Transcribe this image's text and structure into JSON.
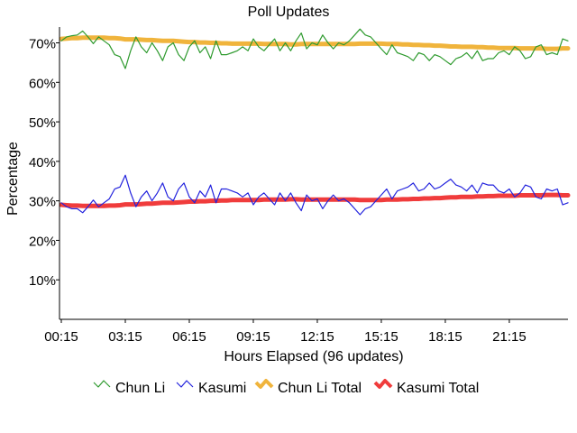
{
  "chart_data": {
    "type": "line",
    "title": "Poll Updates",
    "xlabel": "Hours Elapsed (96 updates)",
    "ylabel": "Percentage",
    "ylim": [
      0,
      74
    ],
    "y_ticks": [
      {
        "value": 10,
        "label": "10%"
      },
      {
        "value": 20,
        "label": "20%"
      },
      {
        "value": 30,
        "label": "30%"
      },
      {
        "value": 40,
        "label": "40%"
      },
      {
        "value": 50,
        "label": "50%"
      },
      {
        "value": 60,
        "label": "60%"
      },
      {
        "value": 70,
        "label": "70%"
      }
    ],
    "x_ticks": [
      {
        "index": 0,
        "label": "00:15"
      },
      {
        "index": 12,
        "label": "03:15"
      },
      {
        "index": 24,
        "label": "06:15"
      },
      {
        "index": 36,
        "label": "09:15"
      },
      {
        "index": 48,
        "label": "12:15"
      },
      {
        "index": 60,
        "label": "15:15"
      },
      {
        "index": 72,
        "label": "18:15"
      },
      {
        "index": 84,
        "label": "21:15"
      }
    ],
    "grid": false,
    "legend_position": "bottom",
    "series": [
      {
        "name": "Chun Li",
        "color": "#2e9a2e",
        "style": "thin",
        "values": [
          70.5,
          71.5,
          71.8,
          72,
          73,
          71.5,
          69.8,
          71.5,
          70.5,
          69.5,
          67,
          66.5,
          63.5,
          68,
          71.5,
          69,
          67.5,
          70,
          68,
          65.5,
          69,
          70,
          67,
          65.5,
          69,
          70.5,
          67.5,
          69,
          66,
          70.5,
          67,
          67,
          67.5,
          68,
          69,
          68,
          71,
          69,
          68,
          69.5,
          71,
          68,
          70,
          68,
          70.5,
          72.5,
          68.5,
          70,
          69.5,
          72,
          70,
          68.5,
          70,
          69.5,
          70.5,
          72,
          73.5,
          72,
          71.5,
          70,
          68.5,
          67,
          69.5,
          67.5,
          67,
          66.5,
          65.5,
          67.5,
          67,
          65.5,
          67,
          66.5,
          65.5,
          64.5,
          66,
          66.5,
          67.5,
          66,
          68,
          65.5,
          66,
          66,
          67.5,
          68,
          67,
          69,
          68,
          66,
          66.5,
          69,
          69.5,
          67,
          67.5,
          67,
          71,
          70.5
        ]
      },
      {
        "name": "Kasumi",
        "color": "#2222dd",
        "style": "thin",
        "values": [
          29.5,
          28.5,
          28,
          28,
          27,
          28.5,
          30.2,
          28.5,
          29.5,
          30.5,
          33,
          33.5,
          36.5,
          32,
          28.5,
          31,
          32.5,
          30,
          32,
          34.5,
          31,
          30,
          33,
          34.5,
          31,
          29.5,
          32.5,
          31,
          34,
          29.5,
          33,
          33,
          32.5,
          32,
          31,
          32,
          29,
          31,
          32,
          30.5,
          29,
          32,
          30,
          32,
          29.5,
          27.5,
          31.5,
          30,
          30.5,
          28,
          30,
          31.5,
          30,
          30.5,
          29.5,
          28,
          26.5,
          28,
          28.5,
          30,
          31.5,
          33,
          30.5,
          32.5,
          33,
          33.5,
          34.5,
          32.5,
          33,
          34.5,
          33,
          33.5,
          34.5,
          35.5,
          34,
          33.5,
          32.5,
          34,
          32,
          34.5,
          34,
          34,
          32.5,
          32,
          33,
          31,
          32,
          34,
          33.5,
          31,
          30.5,
          33,
          32.5,
          33,
          29,
          29.5
        ]
      },
      {
        "name": "Chun Li Total",
        "color": "#f0b43c",
        "style": "thick",
        "values": [
          71,
          71.1,
          71.2,
          71.2,
          71.3,
          71.3,
          71.3,
          71.3,
          71.3,
          71.2,
          71.2,
          71.1,
          70.9,
          70.9,
          70.9,
          70.8,
          70.7,
          70.7,
          70.6,
          70.5,
          70.5,
          70.5,
          70.4,
          70.3,
          70.2,
          70.2,
          70.1,
          70.1,
          70,
          70,
          69.9,
          69.9,
          69.8,
          69.8,
          69.8,
          69.8,
          69.8,
          69.8,
          69.7,
          69.7,
          69.7,
          69.7,
          69.7,
          69.6,
          69.6,
          69.7,
          69.7,
          69.7,
          69.7,
          69.7,
          69.7,
          69.7,
          69.7,
          69.7,
          69.7,
          69.7,
          69.8,
          69.8,
          69.8,
          69.8,
          69.8,
          69.7,
          69.7,
          69.7,
          69.6,
          69.6,
          69.5,
          69.5,
          69.4,
          69.4,
          69.3,
          69.3,
          69.2,
          69.1,
          69.1,
          69,
          69,
          69,
          68.9,
          68.9,
          68.8,
          68.8,
          68.7,
          68.7,
          68.7,
          68.7,
          68.6,
          68.6,
          68.6,
          68.6,
          68.6,
          68.5,
          68.5,
          68.5,
          68.6,
          68.6
        ]
      },
      {
        "name": "Kasumi Total",
        "color": "#f03c3c",
        "style": "thick",
        "values": [
          29,
          28.9,
          28.8,
          28.8,
          28.7,
          28.7,
          28.7,
          28.7,
          28.7,
          28.8,
          28.8,
          28.9,
          29.1,
          29.1,
          29.1,
          29.2,
          29.3,
          29.3,
          29.4,
          29.5,
          29.5,
          29.5,
          29.6,
          29.7,
          29.8,
          29.8,
          29.9,
          29.9,
          30,
          30,
          30.1,
          30.1,
          30.2,
          30.2,
          30.2,
          30.2,
          30.2,
          30.2,
          30.3,
          30.3,
          30.3,
          30.3,
          30.3,
          30.4,
          30.4,
          30.3,
          30.3,
          30.3,
          30.3,
          30.3,
          30.3,
          30.3,
          30.3,
          30.3,
          30.3,
          30.3,
          30.2,
          30.2,
          30.2,
          30.2,
          30.2,
          30.3,
          30.3,
          30.3,
          30.4,
          30.4,
          30.5,
          30.5,
          30.6,
          30.6,
          30.7,
          30.7,
          30.8,
          30.9,
          30.9,
          31,
          31,
          31,
          31.1,
          31.1,
          31.2,
          31.2,
          31.3,
          31.3,
          31.3,
          31.3,
          31.4,
          31.4,
          31.4,
          31.4,
          31.4,
          31.5,
          31.5,
          31.5,
          31.4,
          31.4
        ]
      }
    ]
  }
}
